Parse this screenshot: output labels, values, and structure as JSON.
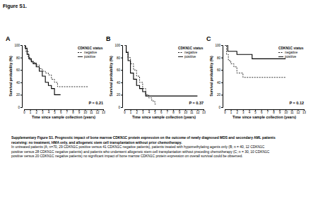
{
  "figure_title": "Figure S1.",
  "chart_data": [
    {
      "type": "step",
      "title": "A",
      "xlabel": "Time since sample collection (years)",
      "ylabel": "Survival probability (%)",
      "xlim": [
        0,
        13
      ],
      "xticks": [
        0,
        1,
        2,
        3,
        4,
        5,
        6,
        7,
        8,
        9,
        10,
        11,
        12,
        13
      ],
      "ylim": [
        0,
        100
      ],
      "yticks": [
        0,
        20,
        40,
        60,
        80,
        100
      ],
      "legend": "upper right",
      "legend_title": "CDKN1C status",
      "annotation": "P = 0.21",
      "series": [
        {
          "name": "negative",
          "color": "#000000",
          "line_style": "dashed",
          "x": [
            0,
            0.3,
            0.7,
            1,
            1.5,
            2,
            2.5,
            3,
            3.5,
            4,
            4.5,
            5,
            5.5,
            10.5
          ],
          "values": [
            100,
            90,
            80,
            75,
            72,
            68,
            62,
            58,
            55,
            52,
            45,
            40,
            33,
            33
          ]
        },
        {
          "name": "positive",
          "color": "#000000",
          "line_style": "solid",
          "x": [
            0,
            0.2,
            0.5,
            0.8,
            1.2,
            1.5,
            2,
            2.5,
            3,
            3.5,
            4,
            4.5,
            5,
            6
          ],
          "values": [
            100,
            95,
            85,
            78,
            73,
            70,
            65,
            58,
            50,
            40,
            35,
            30,
            20,
            20
          ]
        }
      ]
    },
    {
      "type": "step",
      "title": "B",
      "xlabel": "Time since sample collection (years)",
      "ylabel": "Survival probability (%)",
      "xlim": [
        0,
        13
      ],
      "xticks": [
        0,
        1,
        2,
        3,
        4,
        5,
        6,
        7,
        8,
        9,
        10,
        11,
        12,
        13
      ],
      "ylim": [
        0,
        100
      ],
      "yticks": [
        0,
        20,
        40,
        60,
        80,
        100
      ],
      "legend": "upper right",
      "legend_title": "CDKN1C status",
      "annotation": "P = 0.37",
      "series": [
        {
          "name": "negative",
          "color": "#000000",
          "line_style": "dashed",
          "x": [
            0,
            0.3,
            0.6,
            1,
            1.5,
            2,
            2.5,
            3,
            3.5,
            4,
            4.5,
            5,
            5.3
          ],
          "values": [
            100,
            90,
            80,
            70,
            60,
            50,
            40,
            30,
            20,
            15,
            10,
            5,
            5
          ]
        },
        {
          "name": "positive",
          "color": "#000000",
          "line_style": "solid",
          "x": [
            0,
            0.3,
            0.6,
            1,
            1.5,
            2,
            2.5,
            3,
            3.5,
            12
          ],
          "values": [
            100,
            88,
            75,
            55,
            45,
            35,
            30,
            25,
            18,
            18
          ]
        }
      ]
    },
    {
      "type": "step",
      "title": "C",
      "xlabel": "Time since sample collection (years)",
      "ylabel": "Survival probability (%)",
      "xlim": [
        0,
        13
      ],
      "xticks": [
        0,
        1,
        2,
        3,
        4,
        5,
        6,
        7,
        8,
        9,
        10,
        11,
        12,
        13
      ],
      "ylim": [
        0,
        100
      ],
      "yticks": [
        0,
        20,
        40,
        60,
        80,
        100
      ],
      "legend": "upper right",
      "legend_title": "CDKN1C status",
      "annotation": "P = 0.12",
      "series": [
        {
          "name": "negative",
          "color": "#000000",
          "line_style": "dashed",
          "x": [
            0,
            0.3,
            0.6,
            1,
            1.5,
            2,
            3,
            10
          ],
          "values": [
            100,
            85,
            75,
            70,
            65,
            55,
            48,
            48
          ]
        },
        {
          "name": "positive",
          "color": "#000000",
          "line_style": "solid",
          "x": [
            0,
            0.5,
            2,
            4.5,
            10
          ],
          "values": [
            100,
            90,
            85,
            78,
            78
          ]
        }
      ]
    }
  ],
  "caption": {
    "bold_lines": [
      "Supplementary Figure S1. Prognostic impact of bone marrow CDKN1C protein expression on the outcome of newly diagnosed MDS and secondary AML patients",
      "receiving: no treatment, HMA only, and allogeneic stem cell transplantation without prior chemotherapy."
    ],
    "lines": [
      "In untreated patients (A; n=70, 29 CDKN1C positive versus 41 CDKN1C negative patients), patients treated with hypomethylating agents only (B; n = 40, 12 CDKN1C",
      "positive versus 28 CDKN1C negative patients) and patients who underwent allogeneic stem cell transplantation without preceding chemotherapy (C; n = 30, 10 CDKN1C",
      "positive versus 20 CDKN1C negative patients) no significant impact of bone marrow CDKN1C protein expression on overall survival could be observed."
    ]
  }
}
